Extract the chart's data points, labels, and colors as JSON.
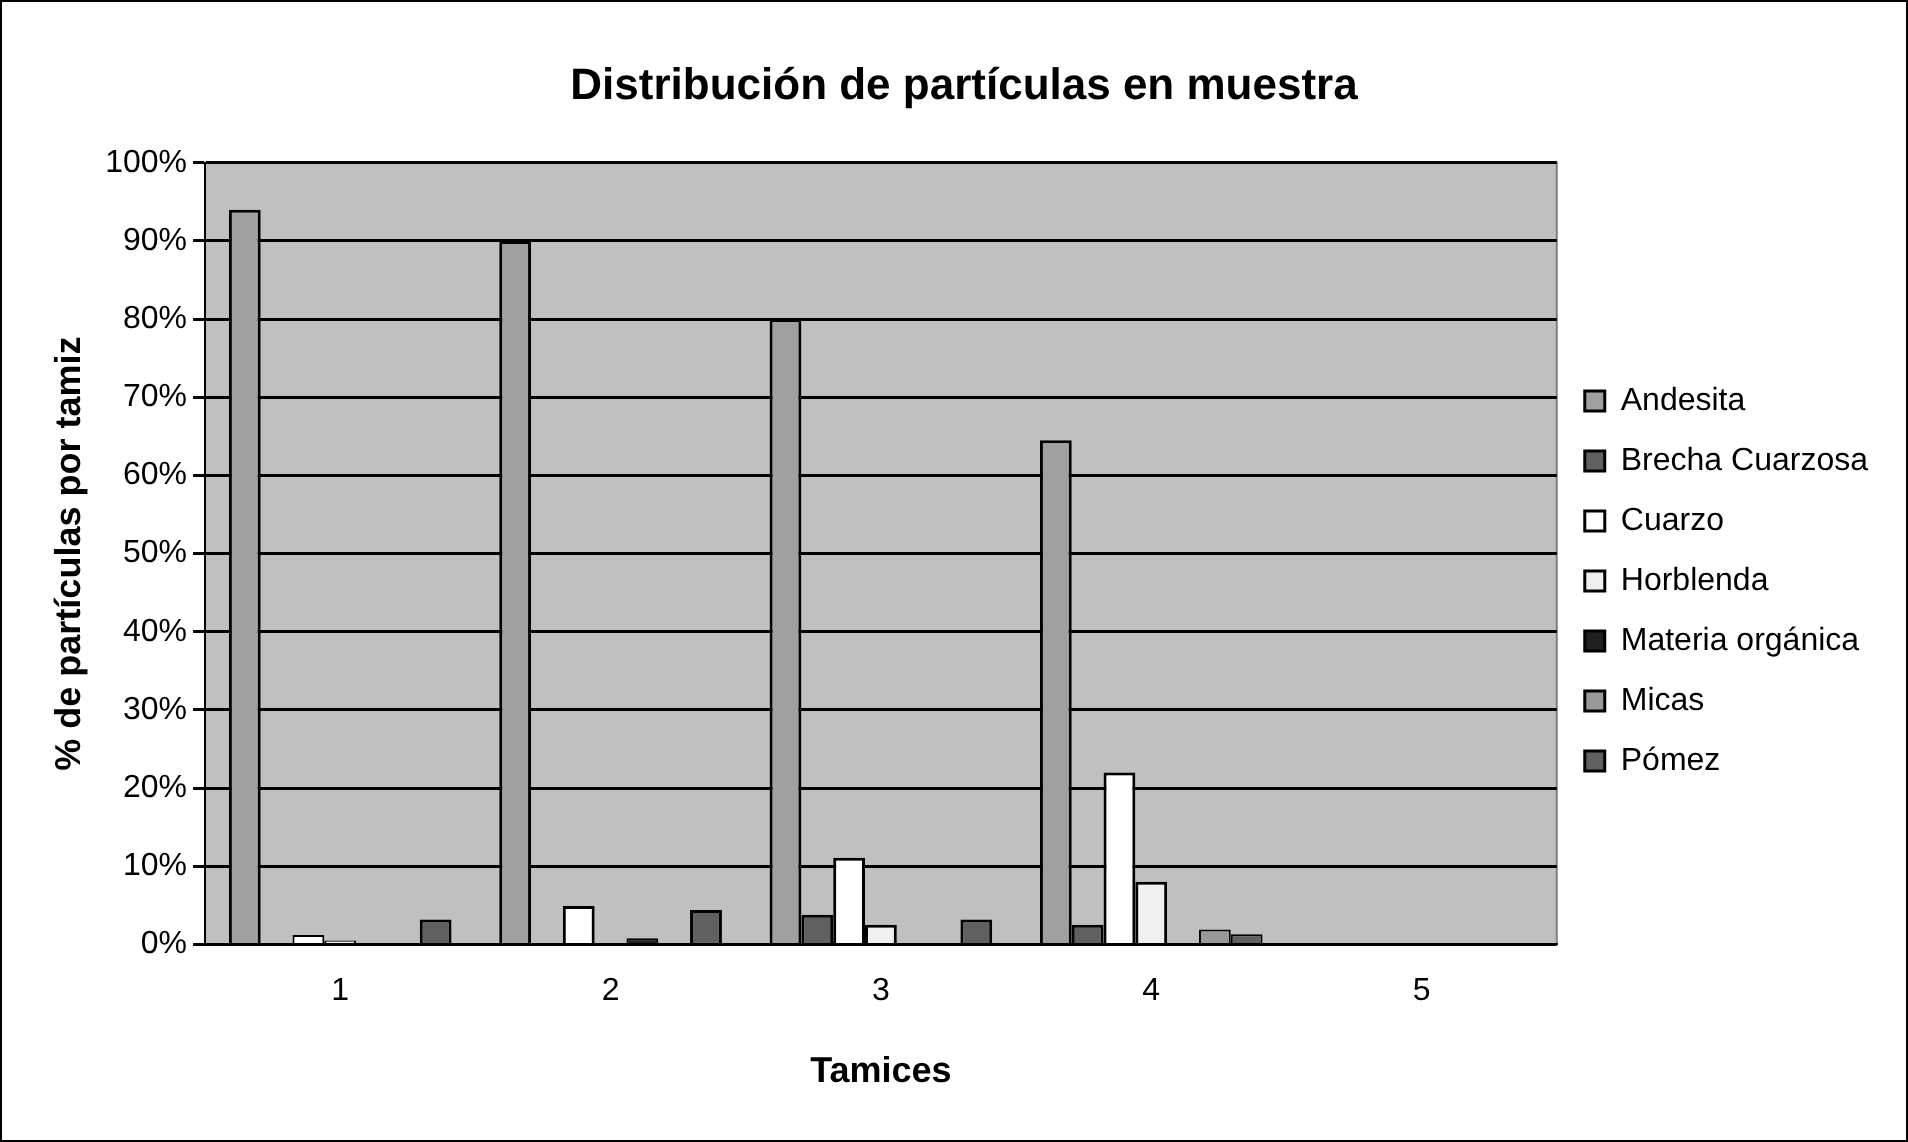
{
  "chart_data": {
    "type": "bar",
    "title": "Distribución de partículas en muestra",
    "xlabel": "Tamices",
    "ylabel": "% de partículas por tamiz",
    "categories": [
      "1",
      "2",
      "3",
      "4",
      "5"
    ],
    "series": [
      {
        "name": "Andesita",
        "color": "#a0a0a0",
        "values": [
          94,
          90,
          80,
          64.5,
          0
        ]
      },
      {
        "name": "Brecha Cuarzosa",
        "color": "#606060",
        "values": [
          0,
          0,
          3.8,
          2.5,
          0
        ]
      },
      {
        "name": "Cuarzo",
        "color": "#ffffff",
        "values": [
          1.2,
          4.9,
          11.1,
          22,
          0
        ]
      },
      {
        "name": "Horblenda",
        "color": "#f0f0f0",
        "values": [
          0.5,
          0,
          2.5,
          8,
          0
        ]
      },
      {
        "name": "Materia orgánica",
        "color": "#202020",
        "values": [
          0,
          0.8,
          0,
          0,
          0
        ]
      },
      {
        "name": "Micas",
        "color": "#999999",
        "values": [
          0,
          0,
          0,
          1.9,
          0
        ]
      },
      {
        "name": "Pómez",
        "color": "#606060",
        "values": [
          3.2,
          4.4,
          3.2,
          1.3,
          0
        ]
      }
    ],
    "ylim": [
      0,
      100
    ],
    "yticks": [
      {
        "value": 0,
        "label": "0%"
      },
      {
        "value": 10,
        "label": "10%"
      },
      {
        "value": 20,
        "label": "20%"
      },
      {
        "value": 30,
        "label": "30%"
      },
      {
        "value": 40,
        "label": "40%"
      },
      {
        "value": 50,
        "label": "50%"
      },
      {
        "value": 60,
        "label": "60%"
      },
      {
        "value": 70,
        "label": "70%"
      },
      {
        "value": 80,
        "label": "80%"
      },
      {
        "value": 90,
        "label": "90%"
      },
      {
        "value": 100,
        "label": "100%"
      }
    ],
    "grid": "y",
    "legend": "right"
  }
}
